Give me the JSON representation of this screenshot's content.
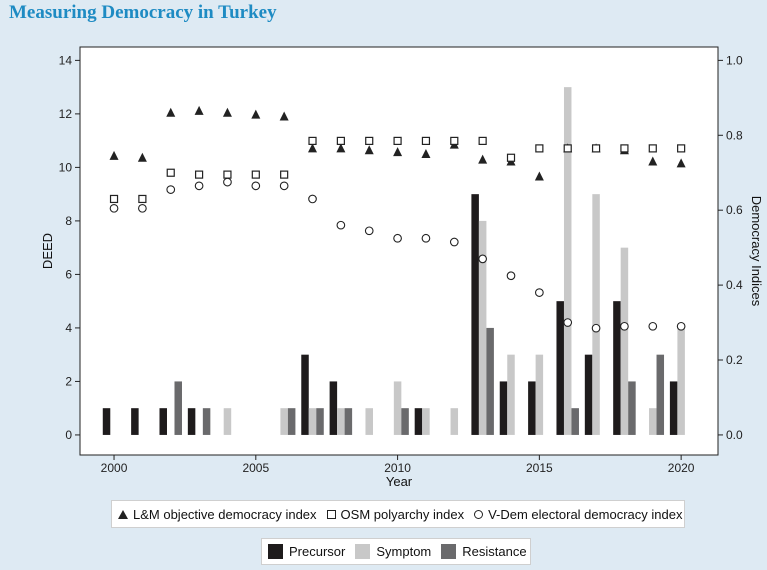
{
  "title": "Measuring Democracy in Turkey",
  "chart_data": {
    "type": "bar+scatter",
    "xlabel": "Year",
    "ylabel_left": "DEED",
    "ylabel_right": "Democracy Indices",
    "xlim": [
      1998.8,
      2021.3
    ],
    "ylim_left": [
      -0.75,
      14.5
    ],
    "ylim_right": [
      -0.0536,
      1.0357
    ],
    "x_ticks": [
      2000,
      2005,
      2010,
      2015,
      2020
    ],
    "y_ticks_left": [
      0,
      2,
      4,
      6,
      8,
      10,
      12,
      14
    ],
    "y_ticks_right": [
      "0.0",
      "0.2",
      "0.4",
      "0.6",
      "0.8",
      "1.0"
    ],
    "years": [
      2000,
      2001,
      2002,
      2003,
      2004,
      2005,
      2006,
      2007,
      2008,
      2009,
      2010,
      2011,
      2012,
      2013,
      2014,
      2015,
      2016,
      2017,
      2018,
      2019,
      2020
    ],
    "bar_series": [
      {
        "name": "Precursor",
        "color": "#1e1b1c",
        "values": [
          1,
          1,
          1,
          1,
          0,
          0,
          0,
          3,
          2,
          0,
          0,
          1,
          0,
          9,
          2,
          2,
          5,
          3,
          5,
          0,
          2
        ]
      },
      {
        "name": "Symptom",
        "color": "#c8c8c8",
        "values": [
          0,
          0,
          0,
          0,
          1,
          0,
          1,
          1,
          1,
          1,
          2,
          1,
          1,
          8,
          3,
          3,
          13,
          9,
          7,
          1,
          4
        ]
      },
      {
        "name": "Resistance",
        "color": "#6a6a6c",
        "values": [
          0,
          0,
          2,
          1,
          0,
          0,
          1,
          1,
          1,
          0,
          1,
          0,
          0,
          4,
          0,
          0,
          1,
          0,
          2,
          3,
          0
        ]
      }
    ],
    "point_series": [
      {
        "name": "L&M objective democracy index",
        "marker": "triangle",
        "values": [
          0.745,
          0.74,
          0.86,
          0.865,
          0.86,
          0.855,
          0.85,
          0.765,
          0.765,
          0.76,
          0.755,
          0.75,
          0.775,
          0.735,
          0.73,
          0.69,
          0.765,
          0.765,
          0.76,
          0.73,
          0.725
        ]
      },
      {
        "name": "OSM polyarchy index",
        "marker": "square",
        "values": [
          0.63,
          0.63,
          0.7,
          0.695,
          0.695,
          0.695,
          0.695,
          0.785,
          0.785,
          0.785,
          0.785,
          0.785,
          0.785,
          0.785,
          0.74,
          0.765,
          0.765,
          0.765,
          0.765,
          0.765,
          0.765
        ]
      },
      {
        "name": "V-Dem electoral democracy index",
        "marker": "circle",
        "values": [
          0.605,
          0.605,
          0.655,
          0.665,
          0.675,
          0.665,
          0.665,
          0.63,
          0.56,
          0.545,
          0.525,
          0.525,
          0.515,
          0.47,
          0.425,
          0.38,
          0.3,
          0.285,
          0.29,
          0.29,
          0.29
        ]
      }
    ]
  }
}
